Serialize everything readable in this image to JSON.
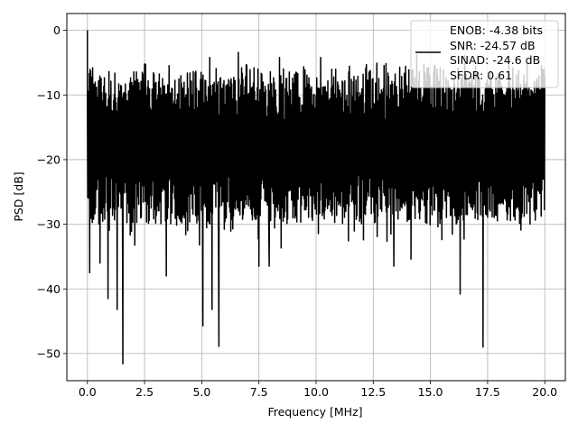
{
  "chart_data": {
    "type": "line",
    "title": "",
    "xlabel": "Frequency [MHz]",
    "ylabel": "PSD [dB]",
    "xlim": [
      -0.9,
      20.9
    ],
    "ylim": [
      -54.2,
      2.6
    ],
    "xticks": [
      0.0,
      2.5,
      5.0,
      7.5,
      10.0,
      12.5,
      15.0,
      17.5,
      20.0
    ],
    "xtick_labels": [
      "0.0",
      "2.5",
      "5.0",
      "7.5",
      "10.0",
      "12.5",
      "15.0",
      "17.5",
      "20.0"
    ],
    "yticks": [
      0,
      -10,
      -20,
      -30,
      -40,
      -50
    ],
    "ytick_labels": [
      "0",
      "−10",
      "−20",
      "−30",
      "−40",
      "−50"
    ],
    "grid": true,
    "legend": {
      "location": "top-right",
      "entries": [
        "ENOB: -4.38 bits",
        "SNR: -24.57 dB",
        "SINAD: -24.6 dB",
        "SFDR: 0.61"
      ]
    },
    "series": [
      {
        "color": "#000000",
        "x_range": [
          0.0,
          20.0
        ],
        "noise_floor_band_db": [
          -26,
          -8
        ],
        "peak": {
          "x": 0.0,
          "y": 0.0
        },
        "dips": [
          {
            "x": 0.1,
            "y": -37.5
          },
          {
            "x": 0.55,
            "y": -36
          },
          {
            "x": 0.9,
            "y": -41.5
          },
          {
            "x": 1.3,
            "y": -43.2
          },
          {
            "x": 1.55,
            "y": -51.6
          },
          {
            "x": 2.5,
            "y": -30.3
          },
          {
            "x": 3.45,
            "y": -38
          },
          {
            "x": 5.05,
            "y": -45.7
          },
          {
            "x": 5.45,
            "y": -43.2
          },
          {
            "x": 5.75,
            "y": -48.9
          },
          {
            "x": 7.5,
            "y": -36.5
          },
          {
            "x": 7.95,
            "y": -36.5
          },
          {
            "x": 13.4,
            "y": -36.5
          },
          {
            "x": 14.15,
            "y": -35.4
          },
          {
            "x": 16.3,
            "y": -40.8
          },
          {
            "x": 17.3,
            "y": -49
          },
          {
            "x": 19.3,
            "y": -26.5
          }
        ],
        "peaks_high": [
          {
            "x": 2.5,
            "y": -5.2
          },
          {
            "x": 5.35,
            "y": -4.2
          },
          {
            "x": 6.6,
            "y": -3.4
          },
          {
            "x": 8.4,
            "y": -4.2
          },
          {
            "x": 10.2,
            "y": -4.2
          },
          {
            "x": 14.4,
            "y": -3.8
          },
          {
            "x": 16.5,
            "y": -3.9
          },
          {
            "x": 18.6,
            "y": -5.8
          }
        ]
      }
    ]
  }
}
